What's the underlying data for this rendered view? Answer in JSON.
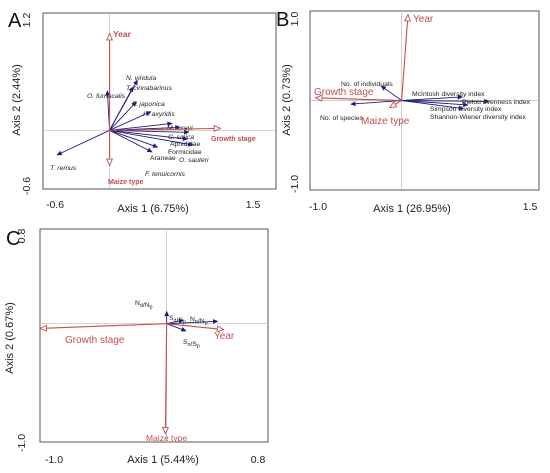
{
  "colors": {
    "species": "#1f1f7a",
    "environment": "#c0504d",
    "frame": "#444444",
    "zero_line": "#bbbbbb"
  },
  "chart_data": [
    {
      "panel": "A",
      "type": "scatter",
      "chart_subtype": "rda-biplot",
      "xlabel": "Axis 1 (6.75%)",
      "ylabel": "Axis 2 (2.44%)",
      "xlim": [
        -0.6,
        1.5
      ],
      "ylim": [
        -0.6,
        1.2
      ],
      "xticks": [
        "-0.6",
        "1.5"
      ],
      "yticks": [
        "1.2",
        "-0.6"
      ],
      "species": [
        {
          "label": "N. viridula",
          "italic": true,
          "x": 0.25,
          "y": 0.51
        },
        {
          "label": "T. cinnabarinus",
          "italic": true,
          "x": 0.21,
          "y": 0.44
        },
        {
          "label": "O. furnacalis",
          "italic": true,
          "x": -0.02,
          "y": 0.4
        },
        {
          "label": "P. japonica",
          "italic": true,
          "x": 0.24,
          "y": 0.29
        },
        {
          "label": "H. axyridis",
          "italic": true,
          "x": 0.37,
          "y": 0.19
        },
        {
          "label": "M. loreyi",
          "italic": true,
          "x": 0.56,
          "y": 0.07
        },
        {
          "label": "C. sinica",
          "italic": true,
          "x": 0.63,
          "y": 0.03
        },
        {
          "label": "Aphididae",
          "italic": false,
          "x": 0.71,
          "y": -0.02
        },
        {
          "label": "Formicidae",
          "italic": false,
          "x": 0.7,
          "y": -0.09
        },
        {
          "label": "O. sauteri",
          "italic": true,
          "x": 0.75,
          "y": -0.15
        },
        {
          "label": "Araneae",
          "italic": false,
          "x": 0.43,
          "y": -0.17
        },
        {
          "label": "F. tenuicornis",
          "italic": true,
          "x": 0.38,
          "y": -0.22
        },
        {
          "label": "T. remus",
          "italic": true,
          "x": -0.47,
          "y": -0.25
        }
      ],
      "environment": [
        {
          "label": "Year",
          "x": 0.0,
          "y": 0.99
        },
        {
          "label": "Growth stage",
          "x": 1.0,
          "y": 0.02
        },
        {
          "label": "Maize type",
          "x": 0.0,
          "y": -0.36
        }
      ]
    },
    {
      "panel": "B",
      "type": "scatter",
      "chart_subtype": "rda-biplot",
      "xlabel": "Axis 1 (26.95%)",
      "ylabel": "Axis 2 (0.73%)",
      "xlim": [
        -1.0,
        1.5
      ],
      "ylim": [
        -1.0,
        1.0
      ],
      "xticks": [
        "-1.0",
        "1.5"
      ],
      "yticks": [
        "1.0",
        "-1.0"
      ],
      "species": [
        {
          "label": "No. of individuals",
          "italic": false,
          "x": -0.22,
          "y": 0.16
        },
        {
          "label": "No. of species",
          "italic": false,
          "x": -0.55,
          "y": -0.04
        },
        {
          "label": "McIntosh diversity index",
          "italic": false,
          "x": 0.66,
          "y": 0.04
        },
        {
          "label": "Pielou evenness index",
          "italic": false,
          "x": 0.95,
          "y": -0.01
        },
        {
          "label": "Simpson diversity index",
          "italic": false,
          "x": 0.72,
          "y": -0.05
        },
        {
          "label": "Shannon-Wiener diversity index",
          "italic": false,
          "x": 0.67,
          "y": -0.09
        }
      ],
      "environment": [
        {
          "label": "Year",
          "x": 0.07,
          "y": 0.96
        },
        {
          "label": "Growth stage",
          "x": -0.94,
          "y": 0.03
        },
        {
          "label": "Maize type",
          "x": -0.13,
          "y": -0.08
        }
      ]
    },
    {
      "panel": "C",
      "type": "scatter",
      "chart_subtype": "rda-biplot",
      "xlabel": "Axis 1 (5.44%)",
      "ylabel": "Axis 2 (0.67%)",
      "xlim": [
        -1.0,
        0.8
      ],
      "ylim": [
        -1.0,
        0.8
      ],
      "xticks": [
        "-1.0",
        "0.8"
      ],
      "yticks": [
        "0.8",
        "-1.0"
      ],
      "species": [
        {
          "label": "Nd/Np",
          "x": 0.0,
          "y": 0.1
        },
        {
          "label": "Sd/Sp",
          "x": 0.13,
          "y": 0.03
        },
        {
          "label": "Nn/Np",
          "x": 0.4,
          "y": 0.02
        },
        {
          "label": "Sn/Sp",
          "x": 0.15,
          "y": -0.06
        }
      ],
      "environment": [
        {
          "label": "Year",
          "x": 0.45,
          "y": -0.05
        },
        {
          "label": "Growth stage",
          "x": -1.0,
          "y": -0.04
        },
        {
          "label": "Maize type",
          "x": -0.01,
          "y": -0.93
        }
      ]
    }
  ]
}
